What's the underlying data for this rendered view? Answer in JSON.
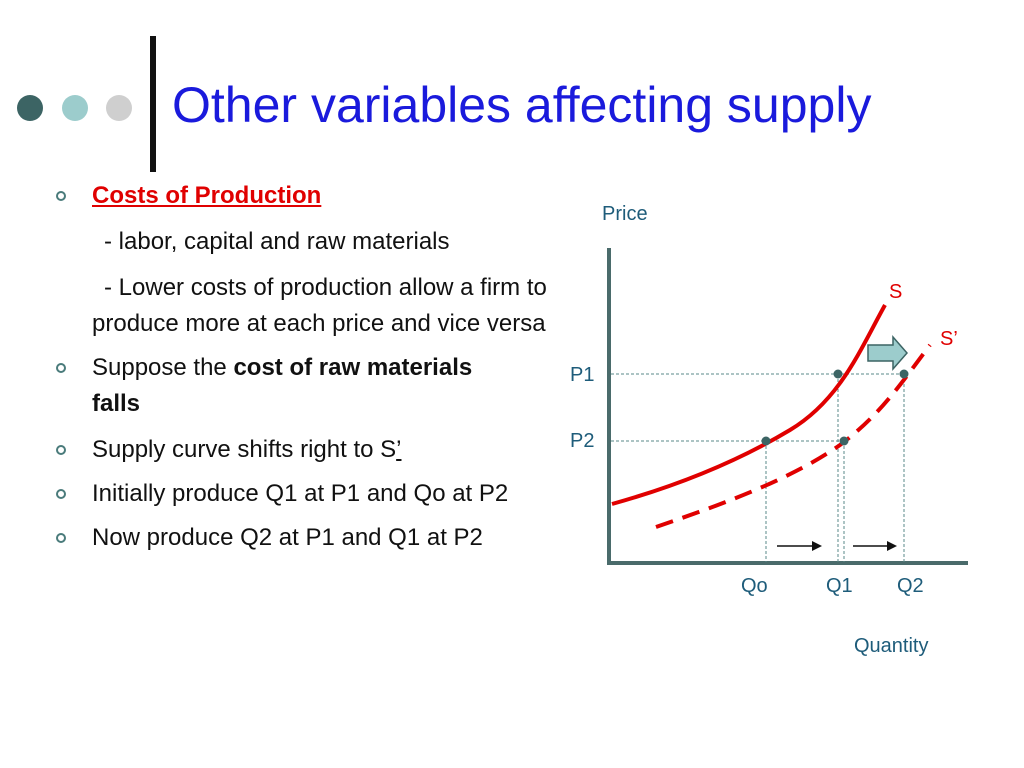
{
  "slide": {
    "title": "Other variables affecting supply",
    "colors": {
      "title": "#1a1adc",
      "accent_red": "#e00000",
      "axis": "#4a6b6b",
      "dot_dark": "#3c6464",
      "dot_mid": "#9ccccc",
      "dot_light": "#cfcfcf"
    }
  },
  "bullets": {
    "b1_heading": "Costs of Production",
    "b1_sub1": "- labor, capital and raw materials",
    "b1_sub2": "- Lower costs of production allow a firm to produce more at each price and vice versa",
    "b2_pre": "Suppose the ",
    "b2_bold": "cost of raw materials falls",
    "b3_pre": "Supply curve shifts right to S",
    "b3_suffix": "’",
    "b4": "Initially produce Q1 at P1 and Qo at P2",
    "b5": "Now produce Q2 at P1 and Q1 at P2"
  },
  "chart_data": {
    "type": "line",
    "title": "",
    "xlabel": "Quantity",
    "ylabel": "Price",
    "x_ticks": [
      "Qo",
      "Q1",
      "Q2"
    ],
    "y_ticks": [
      "P1",
      "P2"
    ],
    "series": [
      {
        "name": "S",
        "style": "solid",
        "color": "#e00000"
      },
      {
        "name": "S’",
        "style": "dashed",
        "color": "#e00000"
      }
    ],
    "points": [
      {
        "curve": "S",
        "x": "Q1",
        "y": "P1"
      },
      {
        "curve": "S",
        "x": "Qo",
        "y": "P2"
      },
      {
        "curve": "S’",
        "x": "Q2",
        "y": "P1"
      },
      {
        "curve": "S’",
        "x": "Q1",
        "y": "P2"
      }
    ],
    "annotations": [
      "rightward shift arrow",
      "arrow Qo→Q1",
      "arrow Q1→Q2"
    ]
  }
}
